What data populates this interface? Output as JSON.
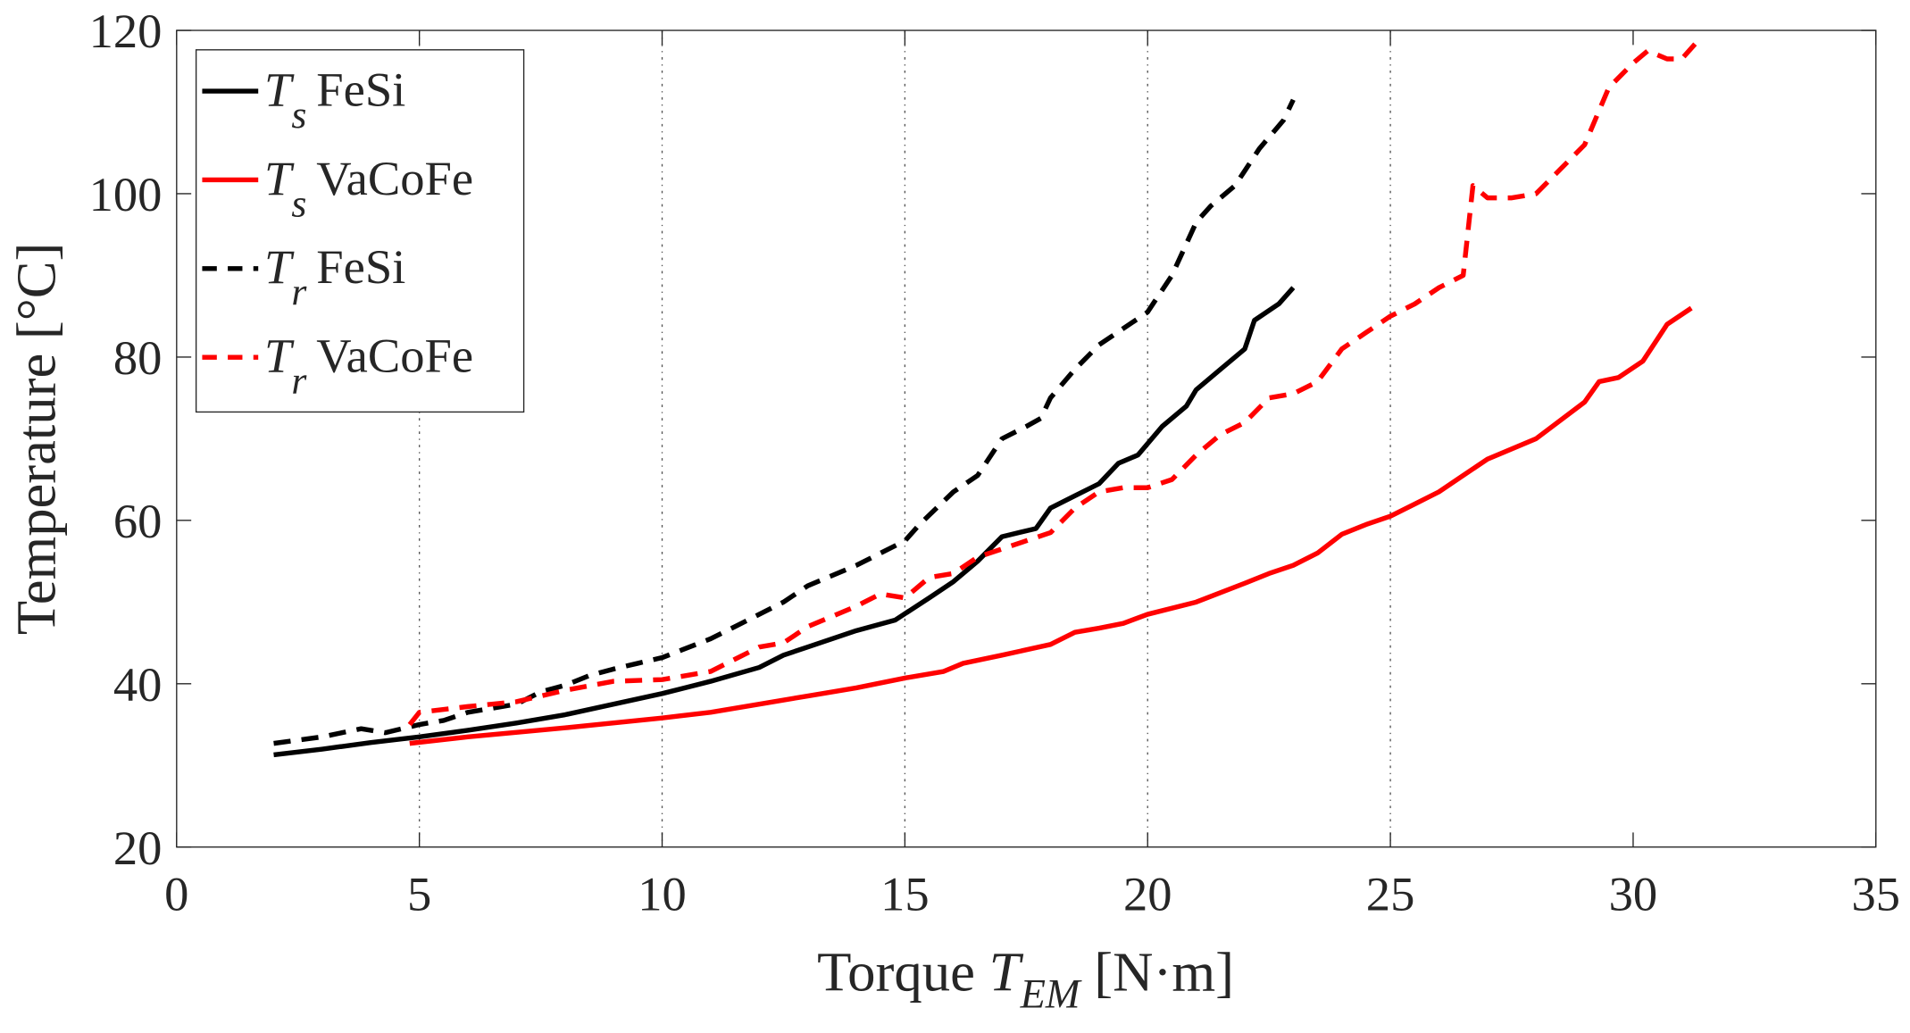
{
  "chart_data": {
    "type": "line",
    "title": "",
    "xlabel": {
      "prefix": "Torque ",
      "symbol": "T",
      "subscript": "EM",
      "unit": " [N·m]"
    },
    "ylabel": "Temperature [°C]",
    "xlim": [
      0,
      35
    ],
    "ylim": [
      20,
      120
    ],
    "xticks": [
      0,
      5,
      10,
      15,
      20,
      25,
      30,
      35
    ],
    "yticks": [
      20,
      40,
      60,
      80,
      100,
      120
    ],
    "grid": "vertical dotted lines at x = 5, 10, 15, 20, 25",
    "legend_position": "top-left",
    "series": [
      {
        "name": "Ts FeSi",
        "symbol": "T",
        "subscript": "s",
        "material": "FeSi",
        "color": "#000000",
        "dash": "solid",
        "x": [
          2,
          3,
          4,
          5,
          6,
          7,
          8,
          9,
          10,
          11,
          12,
          12.5,
          13,
          14,
          14.8,
          15.5,
          16,
          16.5,
          17,
          17.7,
          18,
          18.5,
          19,
          19.4,
          19.8,
          20.3,
          20.8,
          21,
          21.5,
          22,
          22.2,
          22.7,
          23
        ],
        "y": [
          31.3,
          32,
          32.8,
          33.5,
          34.3,
          35.2,
          36.2,
          37.5,
          38.8,
          40.3,
          42,
          43.5,
          44.5,
          46.5,
          47.8,
          50.5,
          52.5,
          55,
          58,
          59,
          61.5,
          63,
          64.5,
          67,
          68,
          71.5,
          74,
          76,
          78.5,
          81,
          84.5,
          86.5,
          88.5
        ]
      },
      {
        "name": "Ts VaCoFe",
        "symbol": "T",
        "subscript": "s",
        "material": "VaCoFe",
        "color": "#ff0000",
        "dash": "solid",
        "x": [
          4.8,
          6,
          8,
          10,
          11,
          12,
          13,
          14,
          15,
          15.8,
          16.2,
          17,
          18,
          18.5,
          19,
          19.5,
          20,
          21,
          22,
          22.5,
          23,
          23.5,
          24,
          24.5,
          25,
          25.5,
          26,
          26.5,
          27,
          28,
          29,
          29.3,
          29.7,
          30.2,
          30.7,
          31.2
        ],
        "y": [
          32.7,
          33.5,
          34.6,
          35.8,
          36.5,
          37.5,
          38.5,
          39.5,
          40.7,
          41.5,
          42.5,
          43.5,
          44.8,
          46.3,
          46.8,
          47.4,
          48.5,
          50,
          52.3,
          53.5,
          54.5,
          56,
          58.3,
          59.5,
          60.5,
          62,
          63.5,
          65.5,
          67.5,
          70,
          74.5,
          77,
          77.5,
          79.5,
          84,
          86
        ]
      },
      {
        "name": "Tr FeSi",
        "symbol": "T",
        "subscript": "r",
        "material": "FeSi",
        "color": "#000000",
        "dash": "dashed",
        "x": [
          2,
          3,
          3.8,
          4.3,
          5,
          5.5,
          6,
          7,
          7.5,
          8,
          8.5,
          9,
          9.5,
          10,
          11,
          11.5,
          12,
          12.5,
          13,
          14,
          15,
          15.3,
          16,
          16.5,
          17,
          17.5,
          17.8,
          18,
          18.5,
          19,
          19.5,
          20,
          20.5,
          21,
          21.3,
          21.8,
          22.3,
          22.8,
          23
        ],
        "y": [
          32.7,
          33.5,
          34.5,
          34,
          35,
          35.5,
          36.5,
          37.5,
          39,
          39.8,
          41,
          41.8,
          42.5,
          43.2,
          45.5,
          47,
          48.5,
          50,
          52,
          54.5,
          57.5,
          59.5,
          63.5,
          65.5,
          70,
          71.5,
          72.5,
          75,
          78.5,
          81.5,
          83.5,
          85.5,
          90,
          96.5,
          98.5,
          101,
          105.5,
          109,
          111.5
        ]
      },
      {
        "name": "Tr VaCoFe",
        "symbol": "T",
        "subscript": "r",
        "material": "VaCoFe",
        "color": "#ff0000",
        "dash": "dashed",
        "x": [
          4.8,
          5,
          6,
          7,
          8,
          9,
          10,
          11,
          12,
          12.5,
          13,
          14,
          14.5,
          15,
          15.5,
          16,
          16.5,
          17,
          17.5,
          18,
          18.5,
          19,
          19.5,
          20,
          20.5,
          21,
          21.5,
          22,
          22.5,
          23,
          23.5,
          24,
          24.5,
          25,
          25.5,
          26,
          26.5,
          26.7,
          27,
          27.5,
          28,
          29,
          29.5,
          30,
          30.3,
          30.7,
          31,
          31.3
        ],
        "y": [
          35,
          36.5,
          37.2,
          37.8,
          39.2,
          40.3,
          40.5,
          41.5,
          44.5,
          45,
          47,
          49.5,
          51,
          50.5,
          53,
          53.5,
          55.5,
          56.5,
          57.5,
          58.5,
          61.5,
          63.5,
          64,
          64,
          65,
          68,
          70.5,
          72,
          75,
          75.5,
          77,
          81,
          83,
          85,
          86.5,
          88.5,
          90,
          101,
          99.5,
          99.5,
          100,
          106,
          113,
          116,
          117.5,
          116.5,
          116.5,
          118.5
        ]
      }
    ]
  }
}
